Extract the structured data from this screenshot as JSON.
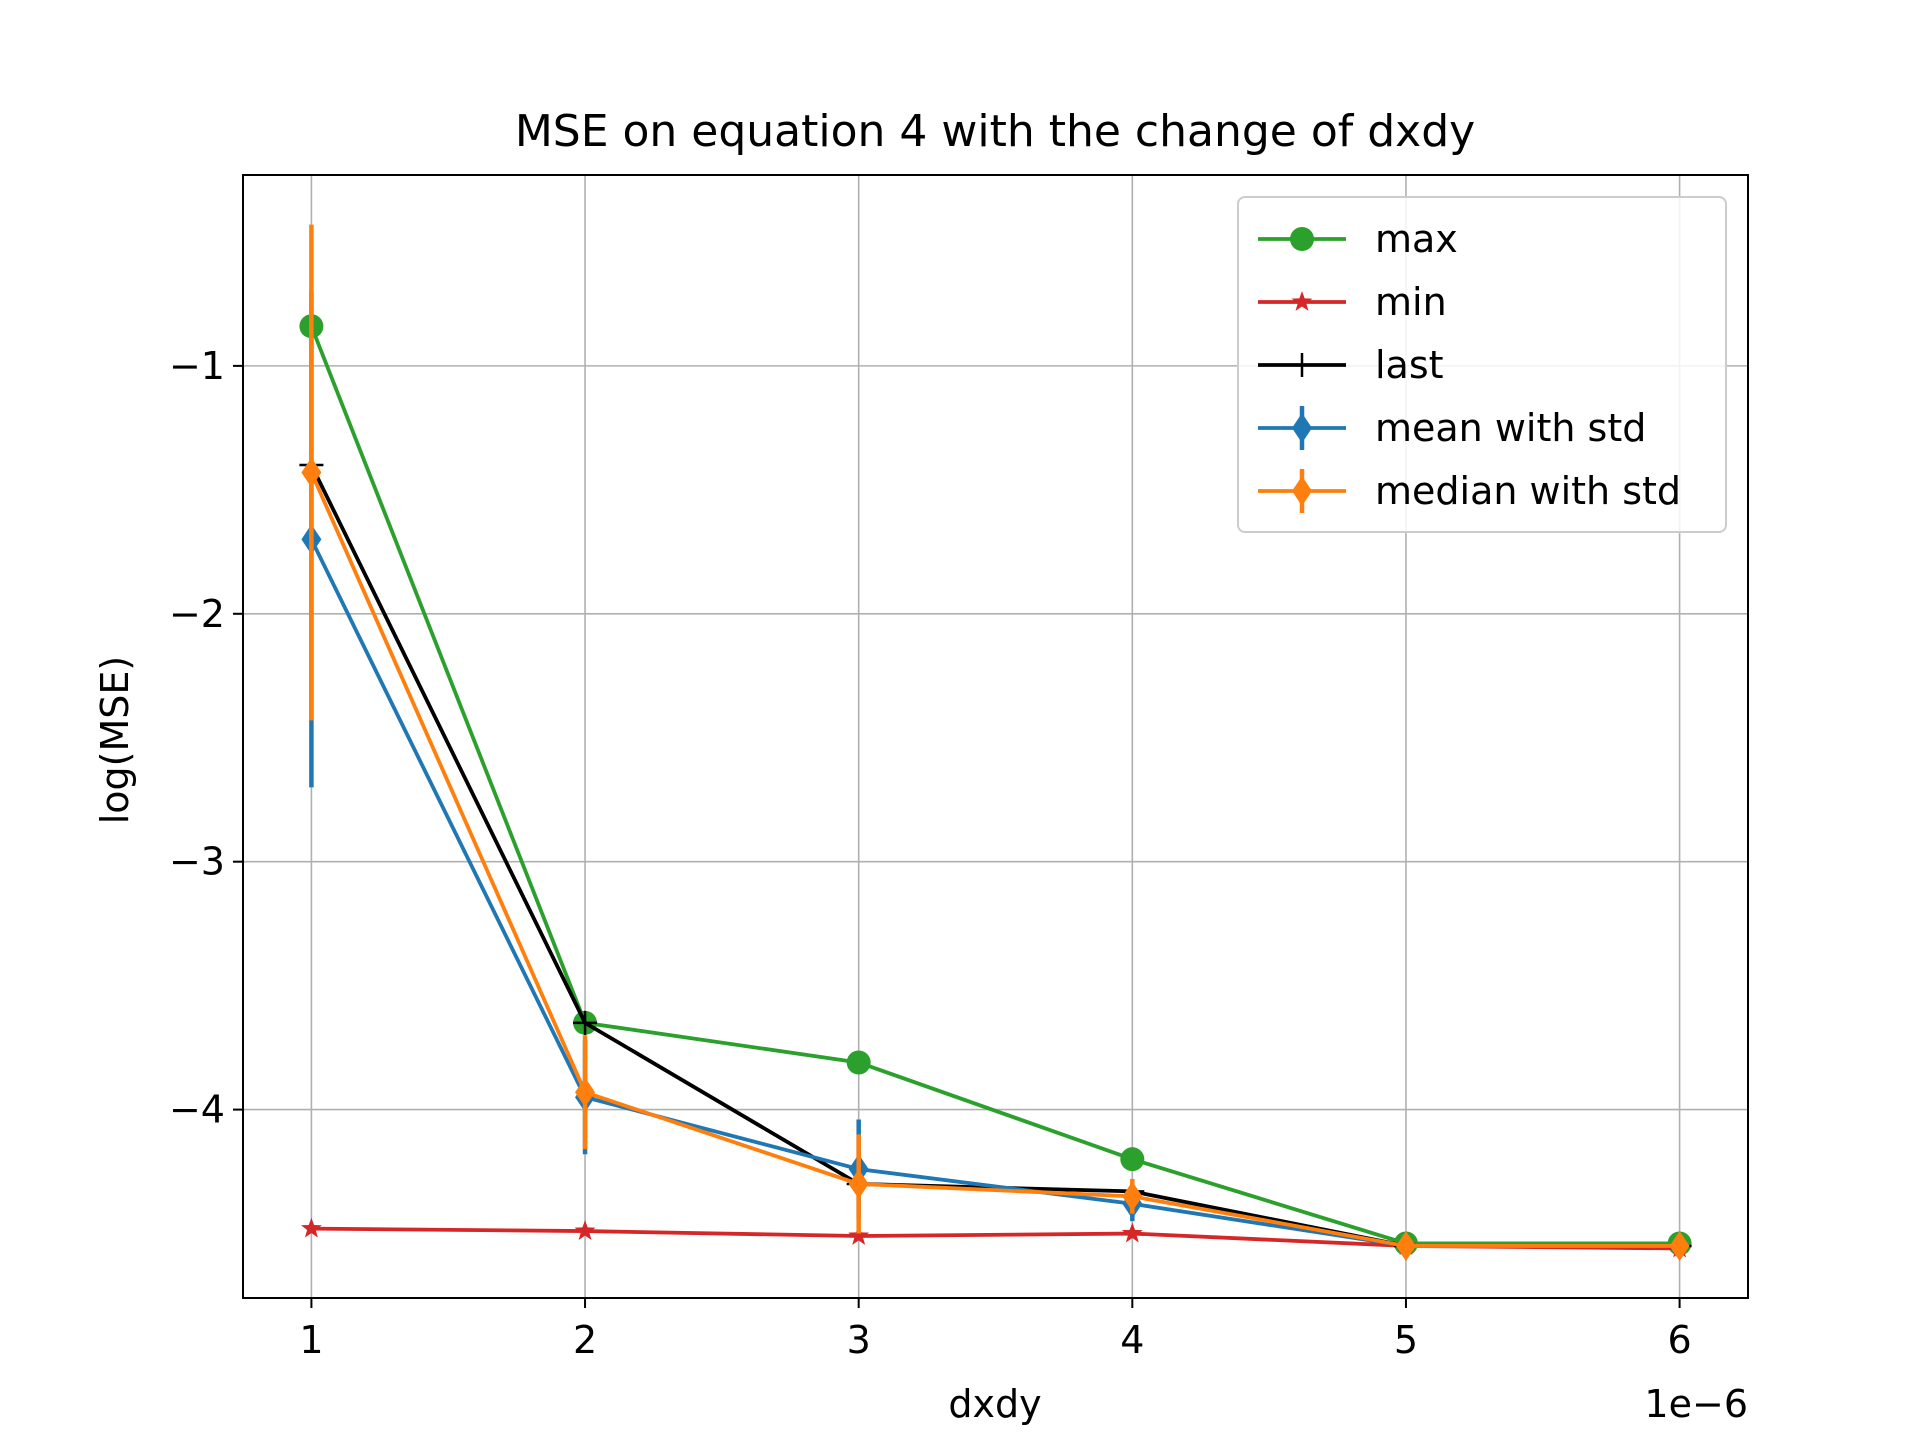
{
  "chart_data": {
    "type": "line",
    "title": "MSE on equation 4 with the change of dxdy",
    "xlabel": "dxdy",
    "ylabel": "log(MSE)",
    "x_offset_label": "1e−6",
    "x": [
      1,
      2,
      3,
      4,
      5,
      6
    ],
    "x_tick_labels": [
      "1",
      "2",
      "3",
      "4",
      "5",
      "6"
    ],
    "y_ticks": [
      -1,
      -2,
      -3,
      -4
    ],
    "y_tick_labels": [
      "−1",
      "−2",
      "−3",
      "−4"
    ],
    "xlim": [
      0.75,
      6.25
    ],
    "ylim": [
      -4.76,
      -0.23
    ],
    "grid": true,
    "legend_position": "upper right",
    "series": [
      {
        "name": "max",
        "color": "#2ca02c",
        "marker": "circle",
        "values": [
          -0.84,
          -3.65,
          -3.81,
          -4.2,
          -4.54,
          -4.54
        ]
      },
      {
        "name": "min",
        "color": "#d62728",
        "marker": "star",
        "values": [
          -4.48,
          -4.49,
          -4.51,
          -4.5,
          -4.55,
          -4.56
        ]
      },
      {
        "name": "last",
        "color": "#000000",
        "marker": "plus",
        "values": [
          -1.4,
          -3.65,
          -4.3,
          -4.33,
          -4.55,
          -4.55
        ]
      },
      {
        "name": "mean with std",
        "color": "#1f77b4",
        "marker": "diamond",
        "values": [
          -1.7,
          -3.95,
          -4.24,
          -4.38,
          -4.55,
          -4.55
        ],
        "std": [
          1.0,
          0.23,
          0.2,
          0.07,
          0.03,
          0.03
        ]
      },
      {
        "name": "median with std",
        "color": "#ff7f0e",
        "marker": "diamond",
        "values": [
          -1.43,
          -3.93,
          -4.3,
          -4.35,
          -4.55,
          -4.55
        ],
        "std": [
          1.0,
          0.23,
          0.2,
          0.07,
          0.03,
          0.03
        ]
      }
    ]
  }
}
